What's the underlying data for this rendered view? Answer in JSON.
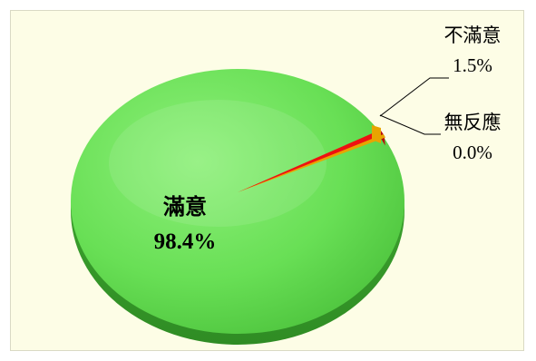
{
  "chart_data": {
    "type": "pie",
    "slices": [
      {
        "label": "滿意",
        "value": 98.4,
        "value_text": "98.4%",
        "color": "#66dd55"
      },
      {
        "label": "不滿意",
        "value": 1.5,
        "value_text": "1.5%",
        "color": "#ee1111"
      },
      {
        "label": "無反應",
        "value": 0.0,
        "value_text": "0.0%",
        "color": "#e8a400"
      }
    ],
    "background": "#fdfde6",
    "legend": "none"
  }
}
